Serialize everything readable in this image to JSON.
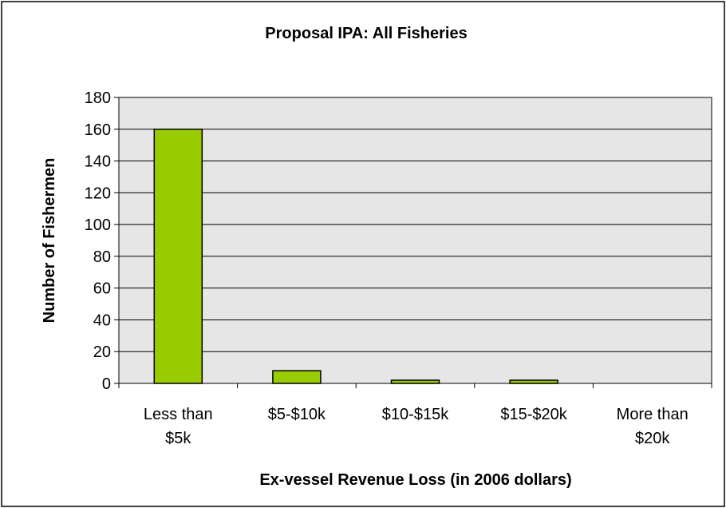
{
  "chart_data": {
    "type": "bar",
    "title": "Proposal IPA: All Fisheries",
    "xlabel": "Ex-vessel Revenue Loss (in 2006 dollars)",
    "ylabel": "Number of Fishermen",
    "categories": [
      [
        "Less than",
        "$5k"
      ],
      [
        "$5-$10k"
      ],
      [
        "$10-$15k"
      ],
      [
        "$15-$20k"
      ],
      [
        "More than",
        "$20k"
      ]
    ],
    "values": [
      160,
      8,
      2,
      2,
      0
    ],
    "ylim": [
      0,
      180
    ],
    "yticks": [
      0,
      20,
      40,
      60,
      80,
      100,
      120,
      140,
      160,
      180
    ],
    "grid": true,
    "colors": {
      "bar_fill": "#99cc00",
      "bar_stroke": "#000000",
      "plot_bg": "#e6e6e6",
      "grid": "#000000",
      "border": "#000000"
    }
  }
}
